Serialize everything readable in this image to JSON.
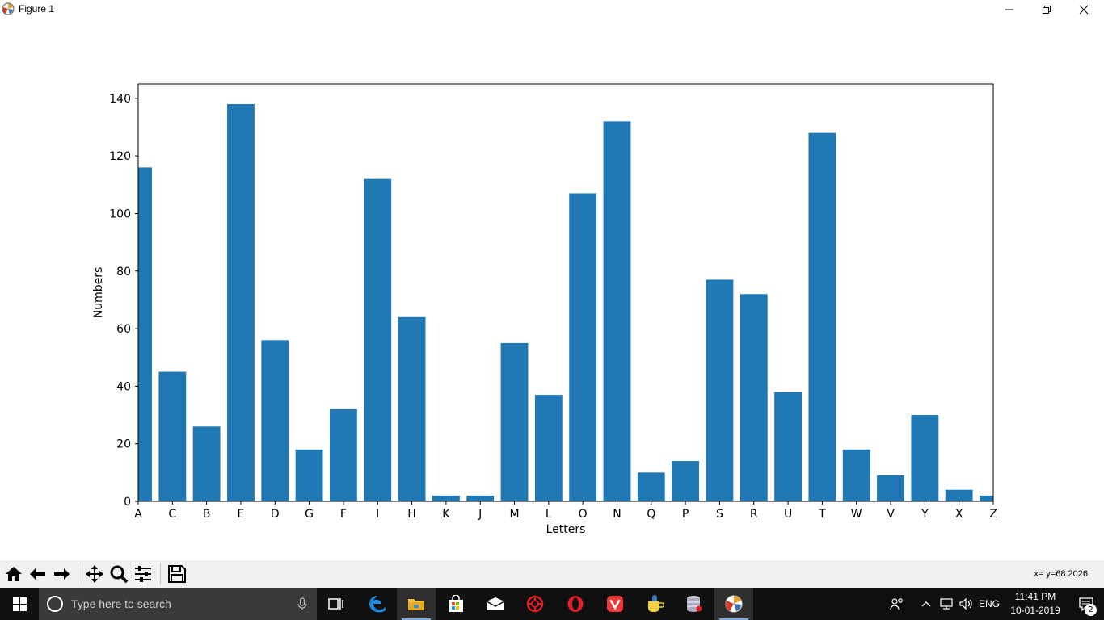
{
  "window": {
    "title": "Figure 1"
  },
  "toolbar": {
    "coords": "x= y=68.2026",
    "buttons": [
      "home-icon",
      "back-icon",
      "forward-icon",
      "pan-icon",
      "zoom-icon",
      "configure-subplots-icon",
      "save-icon"
    ]
  },
  "taskbar": {
    "search_placeholder": "Type here to search",
    "language": "ENG",
    "time": "11:41 PM",
    "date": "10-01-2019",
    "notification_count": "2",
    "apps": [
      "task-view-icon",
      "edge-icon",
      "file-explorer-icon",
      "store-icon",
      "mail-icon",
      "app-red-icon",
      "opera-icon",
      "vivaldi-icon",
      "python-idle-icon",
      "database-icon",
      "matplotlib-figure-icon"
    ]
  },
  "chart_data": {
    "type": "bar",
    "categories": [
      "A",
      "C",
      "B",
      "E",
      "D",
      "G",
      "F",
      "I",
      "H",
      "K",
      "J",
      "M",
      "L",
      "O",
      "N",
      "Q",
      "P",
      "S",
      "R",
      "U",
      "T",
      "W",
      "V",
      "Y",
      "X",
      "Z"
    ],
    "values": [
      116,
      45,
      26,
      138,
      56,
      18,
      32,
      112,
      64,
      2,
      2,
      55,
      37,
      107,
      132,
      10,
      14,
      77,
      72,
      38,
      128,
      18,
      9,
      30,
      4,
      2
    ],
    "xlabel": "Letters",
    "ylabel": "Numbers",
    "ylim": [
      0,
      145
    ],
    "yticks": [
      0,
      20,
      40,
      60,
      80,
      100,
      120,
      140
    ],
    "bar_color": "#1f77b4",
    "grid": false
  }
}
